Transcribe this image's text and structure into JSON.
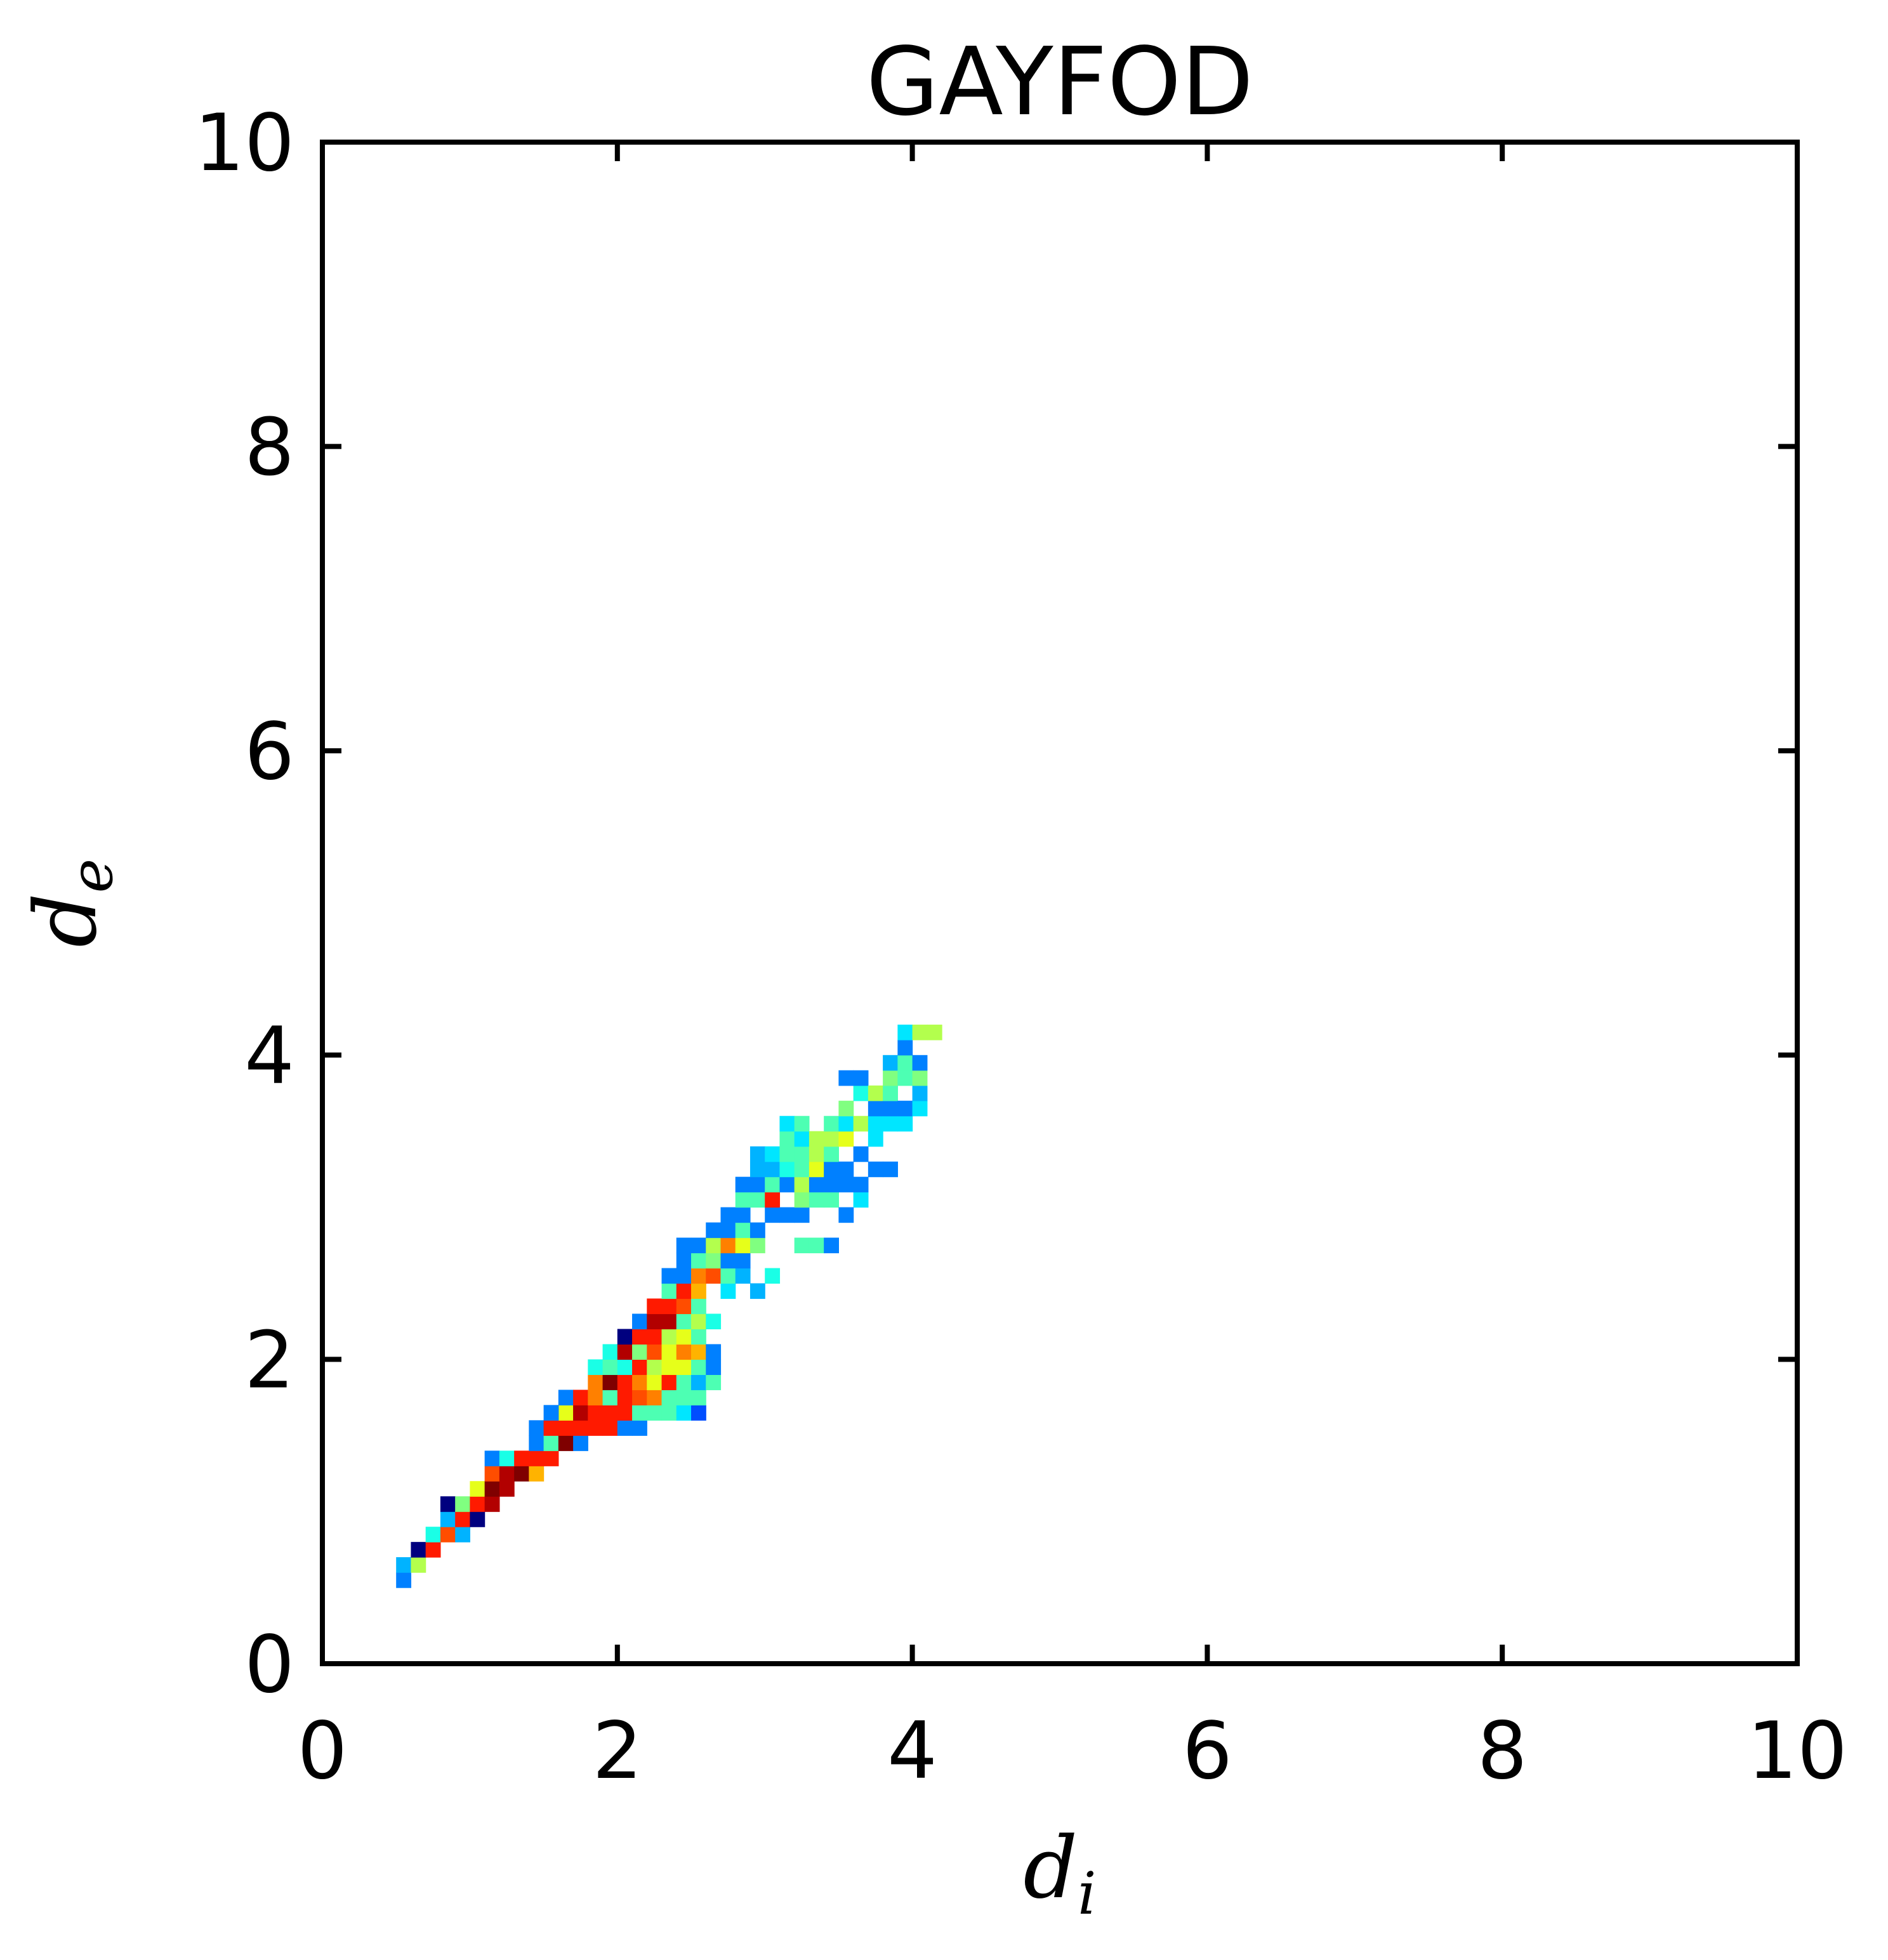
{
  "chart_data": {
    "type": "heatmap",
    "title": "GAYFOD",
    "xlabel": "d",
    "xlabel_sub": "i",
    "ylabel": "d",
    "ylabel_sub": "e",
    "xlim": [
      0,
      10
    ],
    "ylim": [
      0,
      10
    ],
    "xticks": [
      "0",
      "2",
      "4",
      "6",
      "8",
      "10"
    ],
    "yticks": [
      "0",
      "2",
      "4",
      "6",
      "8",
      "10"
    ],
    "grid": false,
    "bin_size": 0.1,
    "colormap": "jet",
    "colors": {
      "frame": "#000000",
      "background": "#ffffff",
      "jet_stops": [
        "#00007f",
        "#0000ff",
        "#0080ff",
        "#00ffff",
        "#80ff80",
        "#ffff00",
        "#ff8000",
        "#ff0000",
        "#7f0000"
      ]
    },
    "note_cells": "each cell = [d_i bin start, d_e bin start, intensity 0-1]",
    "cells": [
      [
        0.5,
        0.5,
        0.25
      ],
      [
        0.5,
        0.6,
        0.3
      ],
      [
        0.6,
        0.6,
        0.55
      ],
      [
        0.6,
        0.7,
        0.0
      ],
      [
        0.7,
        0.7,
        0.85
      ],
      [
        0.7,
        0.8,
        0.4
      ],
      [
        0.8,
        0.8,
        0.8
      ],
      [
        0.8,
        0.9,
        0.3
      ],
      [
        0.9,
        0.8,
        0.3
      ],
      [
        0.8,
        1.0,
        0.0
      ],
      [
        0.9,
        0.9,
        0.85
      ],
      [
        0.9,
        1.0,
        0.5
      ],
      [
        1.0,
        0.9,
        0.0
      ],
      [
        1.0,
        1.0,
        0.85
      ],
      [
        1.0,
        1.1,
        0.6
      ],
      [
        1.1,
        1.0,
        0.95
      ],
      [
        1.1,
        1.1,
        1.0
      ],
      [
        1.2,
        1.1,
        0.95
      ],
      [
        1.1,
        1.2,
        0.8
      ],
      [
        1.2,
        1.2,
        0.95
      ],
      [
        1.3,
        1.2,
        1.0
      ],
      [
        1.4,
        1.2,
        0.7
      ],
      [
        1.1,
        1.3,
        0.25
      ],
      [
        1.2,
        1.3,
        0.4
      ],
      [
        1.3,
        1.3,
        0.85
      ],
      [
        1.4,
        1.3,
        0.85
      ],
      [
        1.5,
        1.3,
        0.85
      ],
      [
        1.4,
        1.4,
        0.25
      ],
      [
        1.4,
        1.5,
        0.25
      ],
      [
        1.5,
        1.4,
        0.45
      ],
      [
        1.5,
        1.5,
        0.85
      ],
      [
        1.6,
        1.4,
        1.0
      ],
      [
        1.6,
        1.5,
        0.85
      ],
      [
        1.7,
        1.4,
        0.25
      ],
      [
        1.6,
        1.6,
        0.6
      ],
      [
        1.5,
        1.6,
        0.25
      ],
      [
        1.6,
        1.7,
        0.25
      ],
      [
        1.7,
        1.5,
        0.85
      ],
      [
        1.7,
        1.6,
        0.95
      ],
      [
        1.8,
        1.5,
        0.85
      ],
      [
        1.8,
        1.6,
        0.85
      ],
      [
        1.9,
        1.5,
        0.85
      ],
      [
        1.9,
        1.6,
        0.85
      ],
      [
        2.0,
        1.5,
        0.25
      ],
      [
        2.1,
        1.5,
        0.25
      ],
      [
        1.7,
        1.7,
        0.85
      ],
      [
        1.8,
        1.7,
        0.75
      ],
      [
        1.8,
        1.8,
        0.75
      ],
      [
        1.9,
        1.7,
        0.45
      ],
      [
        1.9,
        1.8,
        1.0
      ],
      [
        2.0,
        1.6,
        0.85
      ],
      [
        2.0,
        1.7,
        0.85
      ],
      [
        2.1,
        1.6,
        0.45
      ],
      [
        2.2,
        1.6,
        0.45
      ],
      [
        2.3,
        1.6,
        0.45
      ],
      [
        2.4,
        1.6,
        0.35
      ],
      [
        2.5,
        1.6,
        0.2
      ],
      [
        1.8,
        1.9,
        0.4
      ],
      [
        1.9,
        1.9,
        0.45
      ],
      [
        1.9,
        2.0,
        0.4
      ],
      [
        2.0,
        1.8,
        0.85
      ],
      [
        2.0,
        1.9,
        0.4
      ],
      [
        2.0,
        2.0,
        0.95
      ],
      [
        2.0,
        2.1,
        0.0
      ],
      [
        2.1,
        1.7,
        0.8
      ],
      [
        2.1,
        1.8,
        0.75
      ],
      [
        2.1,
        1.9,
        0.85
      ],
      [
        2.1,
        2.0,
        0.5
      ],
      [
        2.1,
        2.1,
        0.85
      ],
      [
        2.1,
        2.2,
        0.25
      ],
      [
        2.2,
        1.7,
        0.75
      ],
      [
        2.2,
        1.8,
        0.6
      ],
      [
        2.2,
        1.9,
        0.55
      ],
      [
        2.2,
        2.0,
        0.8
      ],
      [
        2.2,
        2.1,
        0.85
      ],
      [
        2.2,
        2.2,
        0.95
      ],
      [
        2.2,
        2.3,
        0.85
      ],
      [
        2.3,
        1.7,
        0.45
      ],
      [
        2.3,
        1.8,
        0.85
      ],
      [
        2.3,
        1.9,
        0.6
      ],
      [
        2.3,
        2.0,
        0.6
      ],
      [
        2.3,
        2.1,
        0.55
      ],
      [
        2.3,
        2.2,
        0.95
      ],
      [
        2.3,
        2.3,
        0.85
      ],
      [
        2.3,
        2.4,
        0.45
      ],
      [
        2.3,
        2.5,
        0.25
      ],
      [
        2.4,
        1.7,
        0.45
      ],
      [
        2.4,
        1.8,
        0.45
      ],
      [
        2.4,
        1.9,
        0.6
      ],
      [
        2.4,
        2.0,
        0.75
      ],
      [
        2.4,
        2.1,
        0.6
      ],
      [
        2.4,
        2.2,
        0.45
      ],
      [
        2.4,
        2.3,
        0.8
      ],
      [
        2.4,
        2.4,
        0.85
      ],
      [
        2.4,
        2.5,
        0.25
      ],
      [
        2.4,
        2.6,
        0.25
      ],
      [
        2.4,
        2.7,
        0.25
      ],
      [
        2.5,
        1.7,
        0.45
      ],
      [
        2.5,
        1.8,
        0.3
      ],
      [
        2.5,
        1.9,
        0.45
      ],
      [
        2.5,
        2.0,
        0.7
      ],
      [
        2.5,
        2.1,
        0.45
      ],
      [
        2.5,
        2.2,
        0.55
      ],
      [
        2.5,
        2.3,
        0.45
      ],
      [
        2.5,
        2.4,
        0.7
      ],
      [
        2.5,
        2.5,
        0.75
      ],
      [
        2.5,
        2.6,
        0.45
      ],
      [
        2.5,
        2.7,
        0.25
      ],
      [
        2.6,
        1.8,
        0.45
      ],
      [
        2.6,
        1.9,
        0.25
      ],
      [
        2.6,
        2.0,
        0.25
      ],
      [
        2.6,
        2.2,
        0.4
      ],
      [
        2.6,
        2.5,
        0.8
      ],
      [
        2.6,
        2.6,
        0.5
      ],
      [
        2.6,
        2.7,
        0.55
      ],
      [
        2.6,
        2.8,
        0.25
      ],
      [
        2.7,
        2.4,
        0.35
      ],
      [
        2.7,
        2.5,
        0.45
      ],
      [
        2.7,
        2.6,
        0.25
      ],
      [
        2.7,
        2.7,
        0.75
      ],
      [
        2.7,
        2.8,
        0.25
      ],
      [
        2.7,
        2.9,
        0.25
      ],
      [
        2.8,
        2.5,
        0.3
      ],
      [
        2.8,
        2.6,
        0.25
      ],
      [
        2.8,
        2.7,
        0.6
      ],
      [
        2.8,
        2.8,
        0.45
      ],
      [
        2.8,
        2.9,
        0.25
      ],
      [
        2.8,
        3.0,
        0.45
      ],
      [
        2.8,
        3.1,
        0.25
      ],
      [
        2.9,
        2.4,
        0.3
      ],
      [
        2.9,
        2.7,
        0.5
      ],
      [
        2.9,
        2.8,
        0.25
      ],
      [
        2.9,
        3.0,
        0.45
      ],
      [
        2.9,
        3.1,
        0.25
      ],
      [
        2.9,
        3.2,
        0.3
      ],
      [
        2.9,
        3.3,
        0.3
      ],
      [
        3.0,
        2.5,
        0.4
      ],
      [
        3.0,
        2.9,
        0.25
      ],
      [
        3.0,
        3.0,
        0.85
      ],
      [
        3.0,
        3.1,
        0.45
      ],
      [
        3.0,
        3.2,
        0.3
      ],
      [
        3.0,
        3.3,
        0.35
      ],
      [
        3.1,
        2.9,
        0.25
      ],
      [
        3.1,
        3.1,
        0.25
      ],
      [
        3.1,
        3.2,
        0.4
      ],
      [
        3.1,
        3.3,
        0.45
      ],
      [
        3.1,
        3.4,
        0.45
      ],
      [
        3.1,
        3.5,
        0.35
      ],
      [
        3.2,
        2.7,
        0.45
      ],
      [
        3.2,
        2.9,
        0.25
      ],
      [
        3.2,
        3.0,
        0.5
      ],
      [
        3.2,
        3.1,
        0.55
      ],
      [
        3.2,
        3.2,
        0.45
      ],
      [
        3.2,
        3.3,
        0.45
      ],
      [
        3.2,
        3.4,
        0.35
      ],
      [
        3.2,
        3.5,
        0.45
      ],
      [
        3.3,
        2.7,
        0.45
      ],
      [
        3.3,
        3.0,
        0.45
      ],
      [
        3.3,
        3.1,
        0.25
      ],
      [
        3.3,
        3.2,
        0.6
      ],
      [
        3.3,
        3.3,
        0.55
      ],
      [
        3.3,
        3.4,
        0.55
      ],
      [
        3.4,
        2.7,
        0.25
      ],
      [
        3.4,
        3.0,
        0.45
      ],
      [
        3.4,
        3.1,
        0.25
      ],
      [
        3.4,
        3.2,
        0.25
      ],
      [
        3.4,
        3.3,
        0.45
      ],
      [
        3.4,
        3.4,
        0.55
      ],
      [
        3.4,
        3.5,
        0.45
      ],
      [
        3.5,
        2.9,
        0.25
      ],
      [
        3.5,
        3.1,
        0.25
      ],
      [
        3.5,
        3.2,
        0.25
      ],
      [
        3.5,
        3.4,
        0.6
      ],
      [
        3.5,
        3.5,
        0.35
      ],
      [
        3.5,
        3.6,
        0.5
      ],
      [
        3.5,
        3.8,
        0.25
      ],
      [
        3.6,
        3.0,
        0.35
      ],
      [
        3.6,
        3.1,
        0.25
      ],
      [
        3.6,
        3.3,
        0.25
      ],
      [
        3.6,
        3.5,
        0.55
      ],
      [
        3.6,
        3.7,
        0.4
      ],
      [
        3.6,
        3.8,
        0.25
      ],
      [
        3.7,
        3.2,
        0.25
      ],
      [
        3.7,
        3.4,
        0.35
      ],
      [
        3.7,
        3.5,
        0.35
      ],
      [
        3.7,
        3.6,
        0.25
      ],
      [
        3.7,
        3.7,
        0.55
      ],
      [
        3.8,
        3.2,
        0.25
      ],
      [
        3.8,
        3.5,
        0.35
      ],
      [
        3.8,
        3.6,
        0.25
      ],
      [
        3.8,
        3.7,
        0.45
      ],
      [
        3.8,
        3.8,
        0.5
      ],
      [
        3.8,
        3.9,
        0.3
      ],
      [
        3.9,
        3.5,
        0.35
      ],
      [
        3.9,
        3.6,
        0.25
      ],
      [
        3.9,
        3.8,
        0.45
      ],
      [
        3.9,
        3.9,
        0.45
      ],
      [
        3.9,
        4.0,
        0.25
      ],
      [
        3.9,
        4.1,
        0.35
      ],
      [
        4.0,
        3.6,
        0.35
      ],
      [
        4.0,
        3.7,
        0.3
      ],
      [
        4.0,
        3.8,
        0.5
      ],
      [
        4.0,
        3.9,
        0.25
      ],
      [
        4.0,
        4.1,
        0.55
      ],
      [
        4.1,
        4.1,
        0.55
      ]
    ]
  }
}
